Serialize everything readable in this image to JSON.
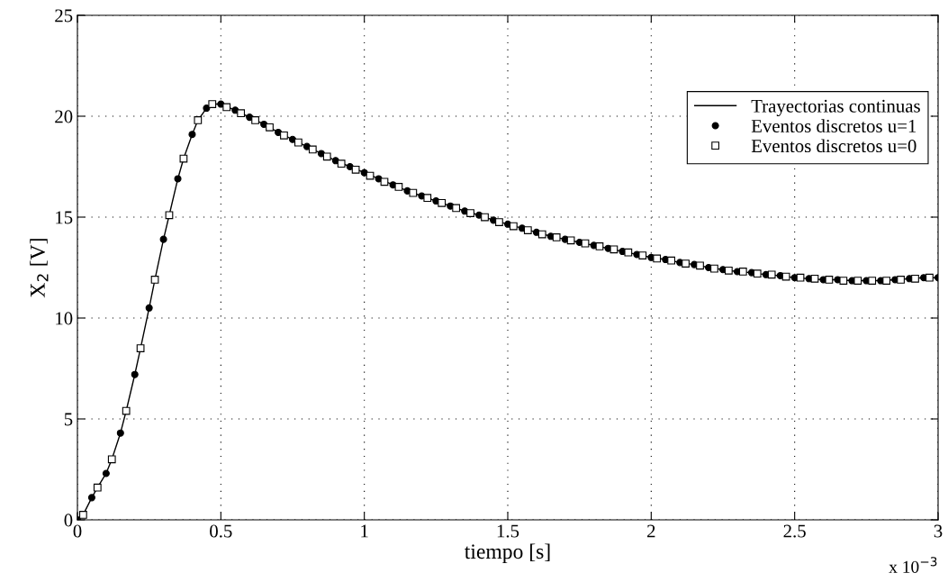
{
  "chart_data": {
    "type": "line",
    "xlabel": "tiempo [s]",
    "ylabel": "X$_{2}$ [V]",
    "xlim": [
      0,
      3
    ],
    "ylim": [
      0,
      25
    ],
    "xticks": [
      0,
      0.5,
      1,
      1.5,
      2,
      2.5,
      3
    ],
    "yticks": [
      0,
      5,
      10,
      15,
      20,
      25
    ],
    "grid": true,
    "legend": "top right",
    "line_style": "solid",
    "annotations": [
      "x 10$^{−3}$"
    ],
    "series": [
      {
        "name": "Trayectorias continuas",
        "marker": "none",
        "color": "#000000",
        "x": [
          0,
          0.02,
          0.05,
          0.07,
          0.1,
          0.12,
          0.15,
          0.17,
          0.2,
          0.22,
          0.25,
          0.27,
          0.3,
          0.32,
          0.35,
          0.37,
          0.4,
          0.42,
          0.45,
          0.47,
          0.5,
          0.55,
          0.6,
          0.65,
          0.7,
          0.75,
          0.8,
          0.85,
          0.9,
          0.95,
          1.0,
          1.05,
          1.1,
          1.15,
          1.2,
          1.25,
          1.3,
          1.35,
          1.4,
          1.45,
          1.5,
          1.55,
          1.6,
          1.65,
          1.7,
          1.75,
          1.8,
          1.85,
          1.9,
          1.95,
          2.0,
          2.05,
          2.1,
          2.15,
          2.2,
          2.25,
          2.3,
          2.35,
          2.4,
          2.45,
          2.5,
          2.55,
          2.6,
          2.65,
          2.7,
          2.75,
          2.8,
          2.85,
          2.9,
          2.95,
          3.0
        ],
        "values": [
          0,
          0.25,
          1.1,
          1.6,
          2.3,
          3.0,
          4.3,
          5.4,
          7.2,
          8.5,
          10.5,
          11.9,
          13.9,
          15.1,
          16.9,
          17.9,
          19.1,
          19.8,
          20.4,
          20.6,
          20.6,
          20.3,
          19.95,
          19.6,
          19.2,
          18.85,
          18.5,
          18.15,
          17.8,
          17.5,
          17.2,
          16.9,
          16.6,
          16.3,
          16.05,
          15.8,
          15.55,
          15.3,
          15.1,
          14.85,
          14.65,
          14.45,
          14.25,
          14.05,
          13.9,
          13.75,
          13.6,
          13.45,
          13.3,
          13.15,
          13.0,
          12.9,
          12.75,
          12.65,
          12.5,
          12.4,
          12.3,
          12.25,
          12.15,
          12.1,
          12.0,
          11.95,
          11.9,
          11.9,
          11.85,
          11.85,
          11.85,
          11.9,
          11.95,
          12.0,
          12.0
        ]
      },
      {
        "name": "Eventos discretos u=1",
        "type": "scatter",
        "marker": "circle",
        "color": "#000000",
        "x": [
          0,
          0.05,
          0.1,
          0.15,
          0.2,
          0.25,
          0.3,
          0.35,
          0.4,
          0.45,
          0.5,
          0.55,
          0.6,
          0.65,
          0.7,
          0.75,
          0.8,
          0.85,
          0.9,
          0.95,
          1.0,
          1.05,
          1.1,
          1.15,
          1.2,
          1.25,
          1.3,
          1.35,
          1.4,
          1.45,
          1.5,
          1.55,
          1.6,
          1.65,
          1.7,
          1.75,
          1.8,
          1.85,
          1.9,
          1.95,
          2.0,
          2.05,
          2.1,
          2.15,
          2.2,
          2.25,
          2.3,
          2.35,
          2.4,
          2.45,
          2.5,
          2.55,
          2.6,
          2.65,
          2.7,
          2.75,
          2.8,
          2.85,
          2.9,
          2.95,
          3.0
        ],
        "values": [
          0,
          1.1,
          2.3,
          4.3,
          7.2,
          10.5,
          13.9,
          16.9,
          19.1,
          20.4,
          20.6,
          20.3,
          19.95,
          19.6,
          19.2,
          18.85,
          18.5,
          18.15,
          17.8,
          17.5,
          17.2,
          16.9,
          16.6,
          16.3,
          16.05,
          15.8,
          15.55,
          15.3,
          15.1,
          14.85,
          14.65,
          14.45,
          14.25,
          14.05,
          13.9,
          13.75,
          13.6,
          13.45,
          13.3,
          13.15,
          13.0,
          12.9,
          12.75,
          12.65,
          12.5,
          12.4,
          12.3,
          12.25,
          12.15,
          12.1,
          12.0,
          11.95,
          11.9,
          11.9,
          11.85,
          11.85,
          11.85,
          11.9,
          11.95,
          12.0,
          12.0
        ]
      },
      {
        "name": "Eventos discretos u=0",
        "type": "scatter",
        "marker": "square",
        "color": "#000000",
        "x": [
          0.02,
          0.07,
          0.12,
          0.17,
          0.22,
          0.27,
          0.32,
          0.37,
          0.42,
          0.47,
          0.52,
          0.57,
          0.62,
          0.67,
          0.72,
          0.77,
          0.82,
          0.87,
          0.92,
          0.97,
          1.02,
          1.07,
          1.12,
          1.17,
          1.22,
          1.27,
          1.32,
          1.37,
          1.42,
          1.47,
          1.52,
          1.57,
          1.62,
          1.67,
          1.72,
          1.77,
          1.82,
          1.87,
          1.92,
          1.97,
          2.02,
          2.07,
          2.12,
          2.17,
          2.22,
          2.27,
          2.32,
          2.37,
          2.42,
          2.47,
          2.52,
          2.57,
          2.62,
          2.67,
          2.72,
          2.77,
          2.82,
          2.87,
          2.92,
          2.97
        ],
        "values": [
          0.25,
          1.6,
          3.0,
          5.4,
          8.5,
          11.9,
          15.1,
          17.9,
          19.8,
          20.6,
          20.45,
          20.15,
          19.8,
          19.45,
          19.05,
          18.7,
          18.35,
          18.0,
          17.65,
          17.35,
          17.05,
          16.75,
          16.5,
          16.2,
          15.95,
          15.7,
          15.45,
          15.2,
          15.0,
          14.75,
          14.55,
          14.35,
          14.15,
          14.0,
          13.85,
          13.7,
          13.55,
          13.4,
          13.25,
          13.1,
          12.95,
          12.85,
          12.7,
          12.6,
          12.45,
          12.35,
          12.3,
          12.2,
          12.15,
          12.05,
          12.0,
          11.95,
          11.9,
          11.85,
          11.85,
          11.85,
          11.85,
          11.9,
          11.95,
          12.0
        ]
      }
    ]
  }
}
